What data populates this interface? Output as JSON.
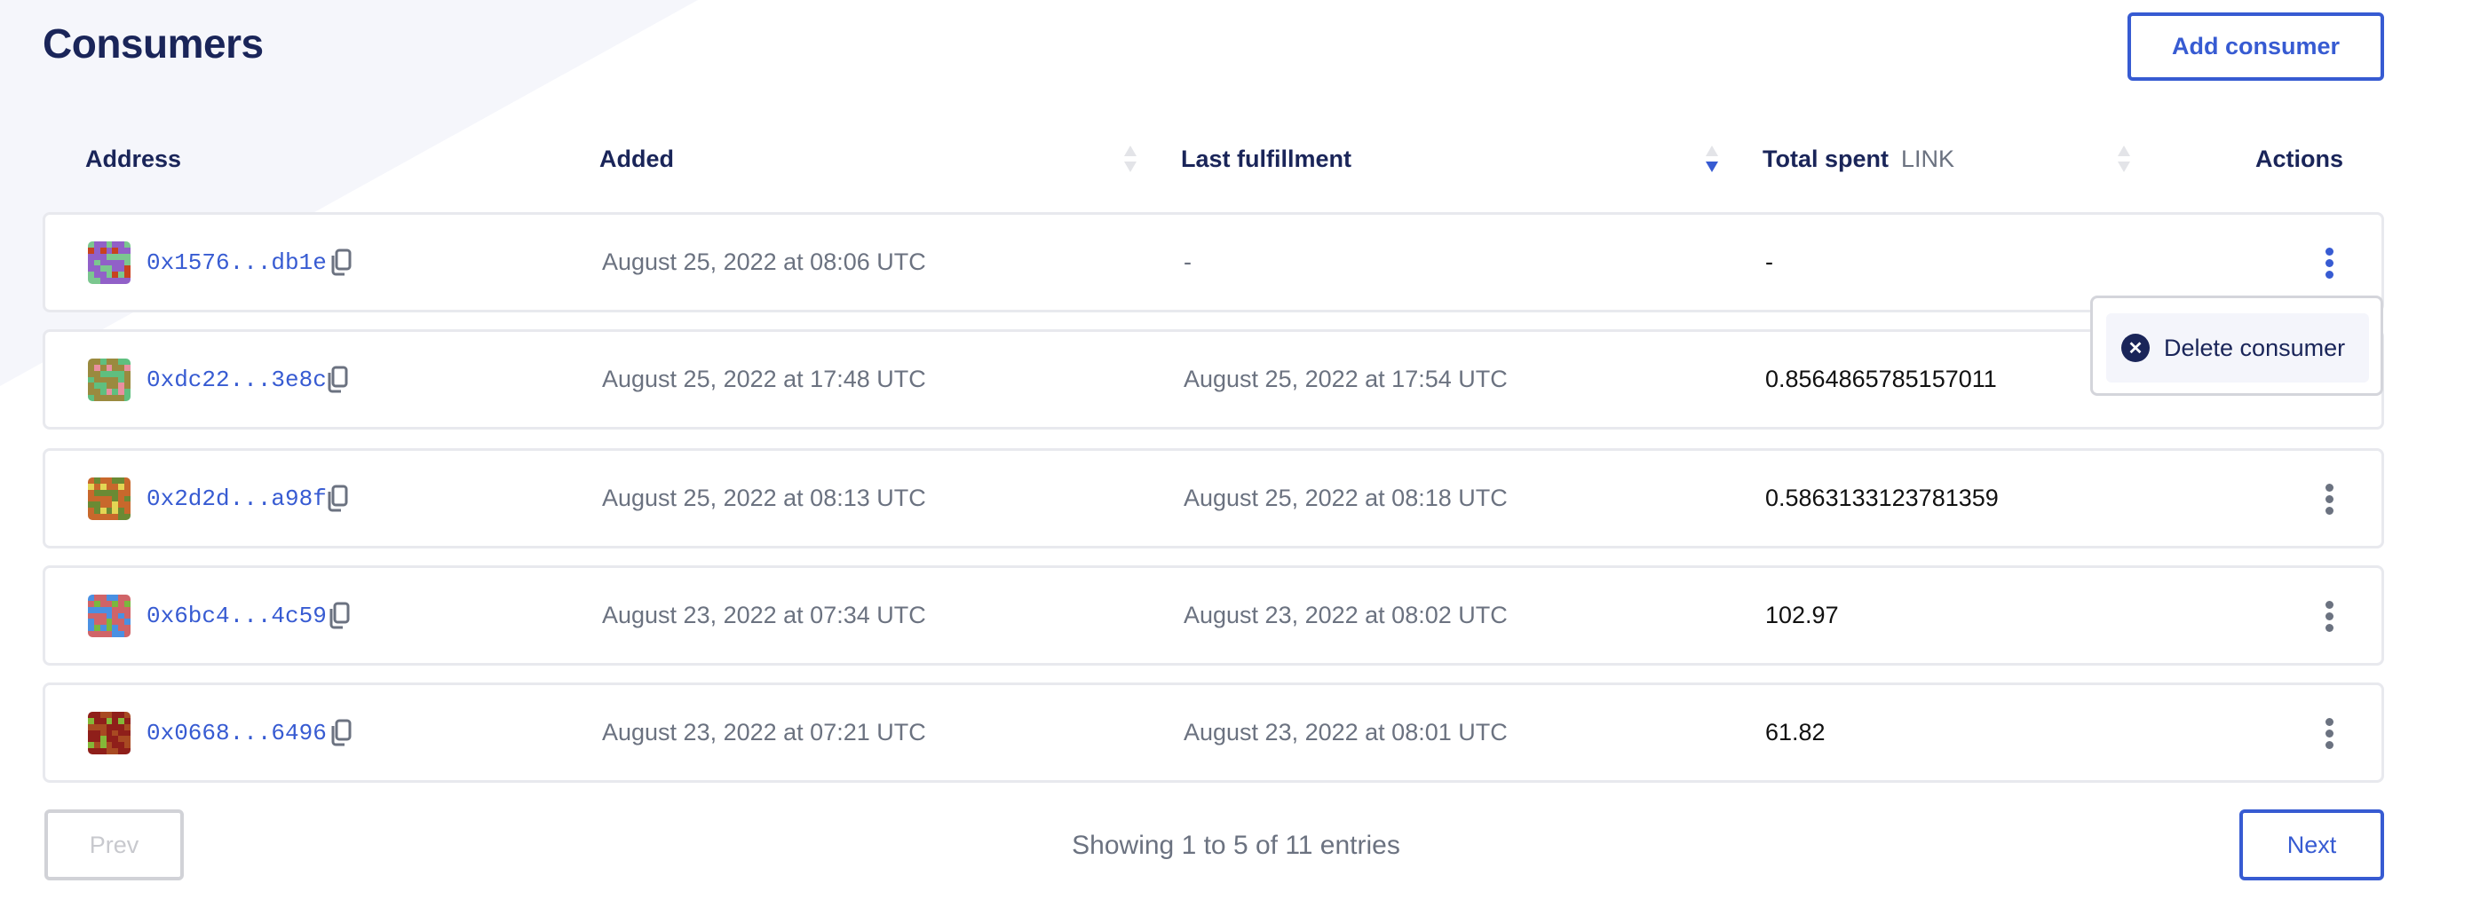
{
  "page": {
    "title": "Consumers"
  },
  "toolbar": {
    "add_consumer_label": "Add consumer"
  },
  "table": {
    "columns": {
      "address": "Address",
      "added": "Added",
      "last_fulfillment": "Last fulfillment",
      "total_spent": "Total spent",
      "total_spent_unit": "LINK",
      "actions": "Actions"
    },
    "sort": {
      "column": "last_fulfillment",
      "direction": "descending"
    },
    "rows": [
      {
        "address": "0x1576...db1e",
        "added": "August 25, 2022 at 08:06 UTC",
        "last_fulfillment": "-",
        "total_spent": "-",
        "avatar_colors": [
          "#7bc78f",
          "#9160c8",
          "#c8421f"
        ]
      },
      {
        "address": "0xdc22...3e8c",
        "added": "August 25, 2022 at 17:48 UTC",
        "last_fulfillment": "August 25, 2022 at 17:54 UTC",
        "total_spent": "0.8564865785157011",
        "avatar_colors": [
          "#5fbf7f",
          "#9a8a3f",
          "#e98fa0"
        ]
      },
      {
        "address": "0x2d2d...a98f",
        "added": "August 25, 2022 at 08:13 UTC",
        "last_fulfillment": "August 25, 2022 at 08:18 UTC",
        "total_spent": "0.5863133123781359",
        "avatar_colors": [
          "#6a8a34",
          "#c8682c",
          "#e3d654"
        ]
      },
      {
        "address": "0x6bc4...4c59",
        "added": "August 23, 2022 at 07:34 UTC",
        "last_fulfillment": "August 23, 2022 at 08:02 UTC",
        "total_spent": "102.97",
        "avatar_colors": [
          "#4a90e2",
          "#d06468",
          "#7ab83e"
        ]
      },
      {
        "address": "0x0668...6496",
        "added": "August 23, 2022 at 07:21 UTC",
        "last_fulfillment": "August 23, 2022 at 08:01 UTC",
        "total_spent": "61.82",
        "avatar_colors": [
          "#a84a22",
          "#8f1f1a",
          "#84b838"
        ]
      }
    ]
  },
  "row_menu": {
    "open_on_row": 1,
    "delete_label": "Delete consumer",
    "delete_icon": "x-circle-icon"
  },
  "pagination": {
    "prev_label": "Prev",
    "next_label": "Next",
    "summary": "Showing 1 to 5 of 11 entries",
    "prev_disabled": true
  },
  "colors": {
    "accent": "#375bd2",
    "title": "#1a2559",
    "muted": "#6b7280",
    "background_shape": "#f5f6fb"
  }
}
